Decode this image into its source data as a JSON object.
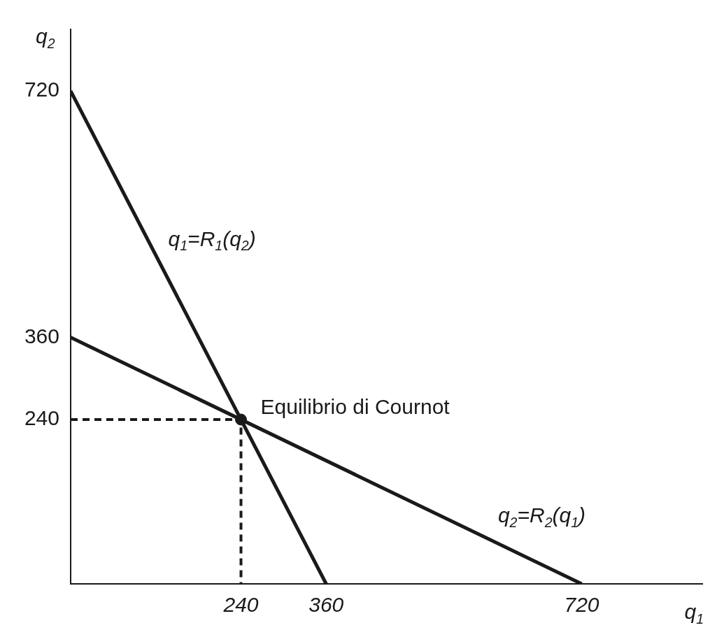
{
  "chart_data": {
    "type": "line",
    "xlabel": "q$_{1}$",
    "ylabel": "q$_{2}$",
    "xlim": [
      0,
      890
    ],
    "ylim": [
      0,
      810
    ],
    "xticks": [
      240,
      360,
      720
    ],
    "yticks": [
      240,
      360,
      720
    ],
    "grid": false,
    "legend": false,
    "marker": "none",
    "line_style": "solid",
    "annotations": [
      {
        "text": "Equilibrio di Cournot",
        "x": 240,
        "y": 240
      }
    ],
    "series": [
      {
        "name": "q$_{1}$=R$_{1}$(q$_{2}$)",
        "color": "#1a1a1a",
        "x": [
          0,
          360
        ],
        "values": [
          720,
          0
        ]
      },
      {
        "name": "q$_{2}$=R$_{2}$(q$_{1}$)",
        "color": "#1a1a1a",
        "x": [
          0,
          720
        ],
        "values": [
          360,
          0
        ]
      },
      {
        "type": "line",
        "line_style": "dashed",
        "color": "#1a1a1a",
        "x": [
          0,
          240,
          240
        ],
        "values": [
          240,
          240,
          0
        ]
      },
      {
        "type": "scatter",
        "marker": "circle",
        "color": "#1a1a1a",
        "x": [
          240
        ],
        "values": [
          240
        ]
      }
    ]
  }
}
